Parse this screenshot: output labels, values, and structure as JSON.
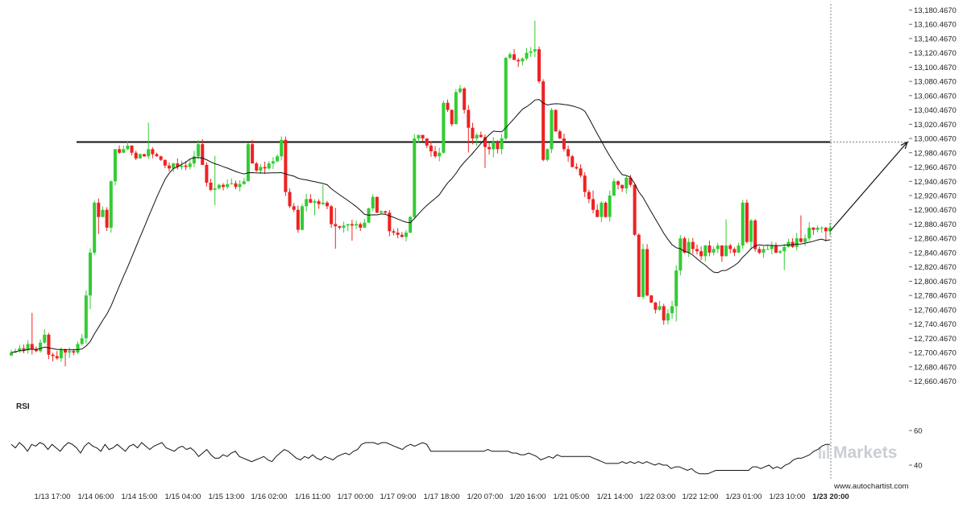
{
  "chart_data": [
    {
      "type": "candlestick",
      "panel": "price",
      "y_ticks": [
        "13,180.4670",
        "13,160.4670",
        "13,140.4670",
        "13,120.4670",
        "13,100.4670",
        "13,080.4670",
        "13,060.4670",
        "13,040.4670",
        "13,020.4670",
        "13,000.4670",
        "12,980.4670",
        "12,960.4670",
        "12,940.4670",
        "12,920.4670",
        "12,900.4670",
        "12,880.4670",
        "12,860.4670",
        "12,840.4670",
        "12,820.4670",
        "12,800.4670",
        "12,780.4670",
        "12,760.4670",
        "12,740.4670",
        "12,720.4670",
        "12,700.4670",
        "12,680.4670",
        "12,660.4670"
      ],
      "x_ticks": [
        "1/13 17:00",
        "1/14 06:00",
        "1/14 15:00",
        "1/15 04:00",
        "1/15 13:00",
        "1/16 02:00",
        "1/16 11:00",
        "1/17 00:00",
        "1/17 09:00",
        "1/17 18:00",
        "1/20 07:00",
        "1/20 16:00",
        "1/21 05:00",
        "1/21 14:00",
        "1/22 03:00",
        "1/22 12:00",
        "1/23 01:00",
        "1/23 10:00",
        "1/23 20:00"
      ],
      "ylim": [
        12655,
        13185
      ],
      "resistance_level": 12995,
      "projection": {
        "from": 12870,
        "to": 12995
      },
      "colors": {
        "up": "#33cc33",
        "down": "#ee2222",
        "ma": "#111111",
        "level": "#111111"
      },
      "closes": [
        12700,
        12702,
        12706,
        12703,
        12712,
        12705,
        12702,
        12714,
        12725,
        12697,
        12695,
        12692,
        12704,
        12700,
        12702,
        12700,
        12712,
        12720,
        12780,
        12840,
        12910,
        12890,
        12900,
        12875,
        12940,
        12985,
        12980,
        12985,
        12990,
        12980,
        12972,
        12978,
        12975,
        12985,
        12978,
        12975,
        12970,
        12962,
        12958,
        12965,
        12960,
        12962,
        12960,
        12965,
        12975,
        12992,
        12963,
        12938,
        12928,
        12930,
        12935,
        12932,
        12936,
        12937,
        12932,
        12936,
        12940,
        12992,
        12965,
        12955,
        12960,
        12958,
        12965,
        12968,
        12975,
        12998,
        12925,
        12905,
        12900,
        12872,
        12905,
        12915,
        12910,
        12912,
        12908,
        12910,
        12905,
        12880,
        12877,
        12875,
        12878,
        12880,
        12878,
        12880,
        12875,
        12882,
        12902,
        12918,
        12896,
        12898,
        12896,
        12870,
        12868,
        12865,
        12862,
        12868,
        12890,
        13000,
        13005,
        13000,
        12990,
        12982,
        12975,
        12980,
        13050,
        13040,
        13020,
        13065,
        13070,
        13040,
        13015,
        13000,
        13005,
        13002,
        12988,
        12985,
        12995,
        12985,
        13000,
        13113,
        13118,
        13110,
        13108,
        13112,
        13120,
        13122,
        13125,
        13080,
        12970,
        12985,
        13040,
        13010,
        13000,
        12985,
        12975,
        12960,
        12958,
        12948,
        12925,
        12915,
        12900,
        12890,
        12910,
        12890,
        12920,
        12940,
        12935,
        12930,
        12945,
        12935,
        12865,
        12778,
        12845,
        12780,
        12770,
        12760,
        12765,
        12745,
        12755,
        12765,
        12815,
        12860,
        12840,
        12855,
        12845,
        12842,
        12835,
        12850,
        12840,
        12845,
        12850,
        12835,
        12850,
        12845,
        12840,
        12850,
        12910,
        12855,
        12885,
        12845,
        12840,
        12845,
        12845,
        12850,
        12840,
        12842,
        12848,
        12855,
        12848,
        12860,
        12855,
        12860,
        12875,
        12872,
        12875,
        12875,
        12870,
        12875
      ]
    },
    {
      "type": "line",
      "panel": "indicator",
      "label": "RSI",
      "y_ticks": [
        "60",
        "40"
      ],
      "ylim": [
        30,
        70
      ],
      "values": [
        52,
        50,
        53,
        51,
        48,
        52,
        51,
        53,
        52,
        49,
        52,
        50,
        48,
        51,
        53,
        52,
        50,
        47,
        51,
        53,
        51,
        50,
        48,
        52,
        49,
        50,
        52,
        50,
        48,
        51,
        52,
        50,
        53,
        51,
        49,
        51,
        52,
        53,
        50,
        49,
        48,
        50,
        51,
        49,
        50,
        48,
        45,
        47,
        49,
        46,
        44,
        44,
        46,
        45,
        47,
        48,
        45,
        44,
        43,
        42,
        43,
        44,
        45,
        43,
        42,
        45,
        47,
        49,
        48,
        46,
        44,
        43,
        45,
        44,
        46,
        44,
        43,
        45,
        44,
        43,
        45,
        46,
        47,
        46,
        48,
        49,
        52,
        53,
        53,
        53,
        52,
        53,
        53,
        52,
        51,
        50,
        49,
        51,
        52,
        51,
        52,
        53,
        52,
        48,
        48,
        48,
        48,
        48,
        48,
        48,
        48,
        48,
        48,
        48,
        48,
        48,
        48,
        49,
        48,
        48,
        48,
        48,
        48,
        47,
        47,
        46,
        46,
        47,
        46,
        45,
        43,
        44,
        45,
        44,
        46,
        45,
        45,
        45,
        45,
        45,
        45,
        45,
        45,
        44,
        43,
        42,
        41,
        41,
        41,
        41,
        42,
        41,
        42,
        41,
        42,
        41,
        42,
        41,
        40,
        41,
        40,
        40,
        38,
        39,
        39,
        38,
        37,
        38,
        36,
        35,
        35,
        35,
        36,
        37,
        37,
        37,
        37,
        37,
        37,
        37,
        37,
        37,
        39,
        39,
        38,
        39,
        40,
        38,
        39,
        38,
        40,
        41,
        43,
        44,
        44,
        45,
        46,
        48,
        49,
        51,
        52,
        52
      ]
    }
  ],
  "watermark": {
    "logo_text": "Markets"
  },
  "source_text": "www.autochartist.com"
}
